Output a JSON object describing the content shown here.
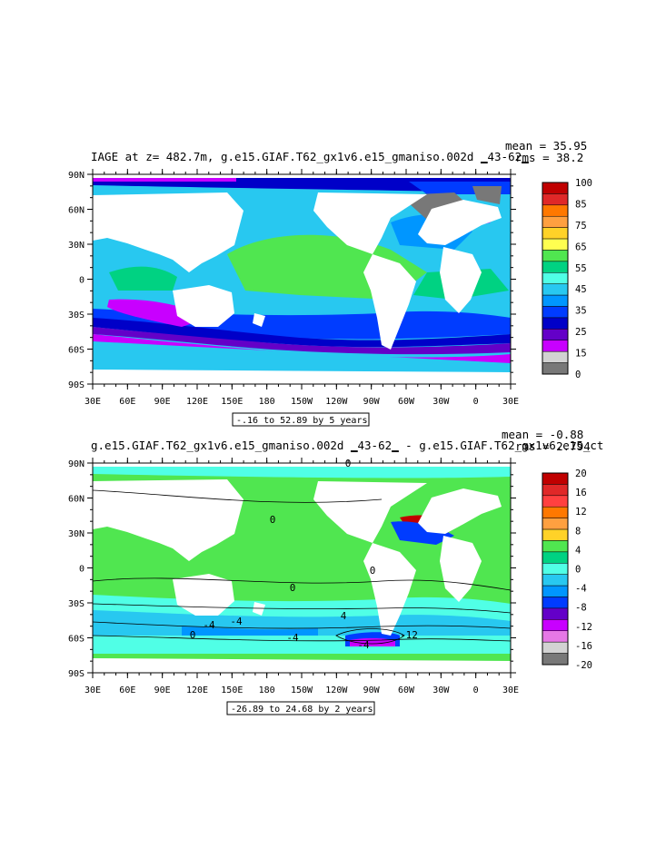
{
  "maps": [
    {
      "title": "IAGE at z= 482.7m, g.e15.GIAF.T62_gx1v6.e15_gmaniso.002d ▁43-62▁",
      "mean_label": "mean = 35.95",
      "rms_label": "rms = 38.2",
      "contour_info": "-.16 to 52.89 by 5 years",
      "colorbar_labels": [
        "100",
        "85",
        "75",
        "65",
        "55",
        "45",
        "35",
        "25",
        "15",
        "0"
      ],
      "colors": [
        "#c00000",
        "#e02828",
        "#ff7800",
        "#ffa040",
        "#ffd228",
        "#ffff50",
        "#50e650",
        "#00d282",
        "#50ffe6",
        "#28c8f0",
        "#0096ff",
        "#003cff",
        "#0000c8",
        "#6400c8",
        "#c800ff",
        "#d2d2d2",
        "#787878"
      ]
    },
    {
      "title": "g.e15.GIAF.T62_gx1v6.e15_gmaniso.002d ▁43-62▁ - g.e15.GIAF.T62_gx1v6.e15_ct",
      "mean_label": "mean = -0.88",
      "rms_label": "rms = 2.794",
      "contour_info": "-26.89 to 24.68 by 2 years",
      "colorbar_labels": [
        "20",
        "16",
        "12",
        "8",
        "4",
        "0",
        "-4",
        "-8",
        "-12",
        "-16",
        "-20"
      ],
      "colors": [
        "#c00000",
        "#e02828",
        "#ff4040",
        "#ff7800",
        "#ffa040",
        "#ffd228",
        "#50e650",
        "#00d282",
        "#50ffe6",
        "#28c8f0",
        "#0096ff",
        "#003cff",
        "#6400c8",
        "#c800ff",
        "#e678e6",
        "#d2d2d2",
        "#787878"
      ]
    }
  ],
  "axes": {
    "lon_labels": [
      "30E",
      "60E",
      "90E",
      "120E",
      "150E",
      "180",
      "150W",
      "120W",
      "90W",
      "60W",
      "30W",
      "0",
      "30E"
    ],
    "lat_labels": [
      "90N",
      "60N",
      "30N",
      "0",
      "30S",
      "60S",
      "90S"
    ]
  },
  "contour_labels": [
    "0",
    "0",
    "0",
    "0",
    "0",
    "-4",
    "-4",
    "-4",
    "4",
    "-4",
    "-12"
  ]
}
